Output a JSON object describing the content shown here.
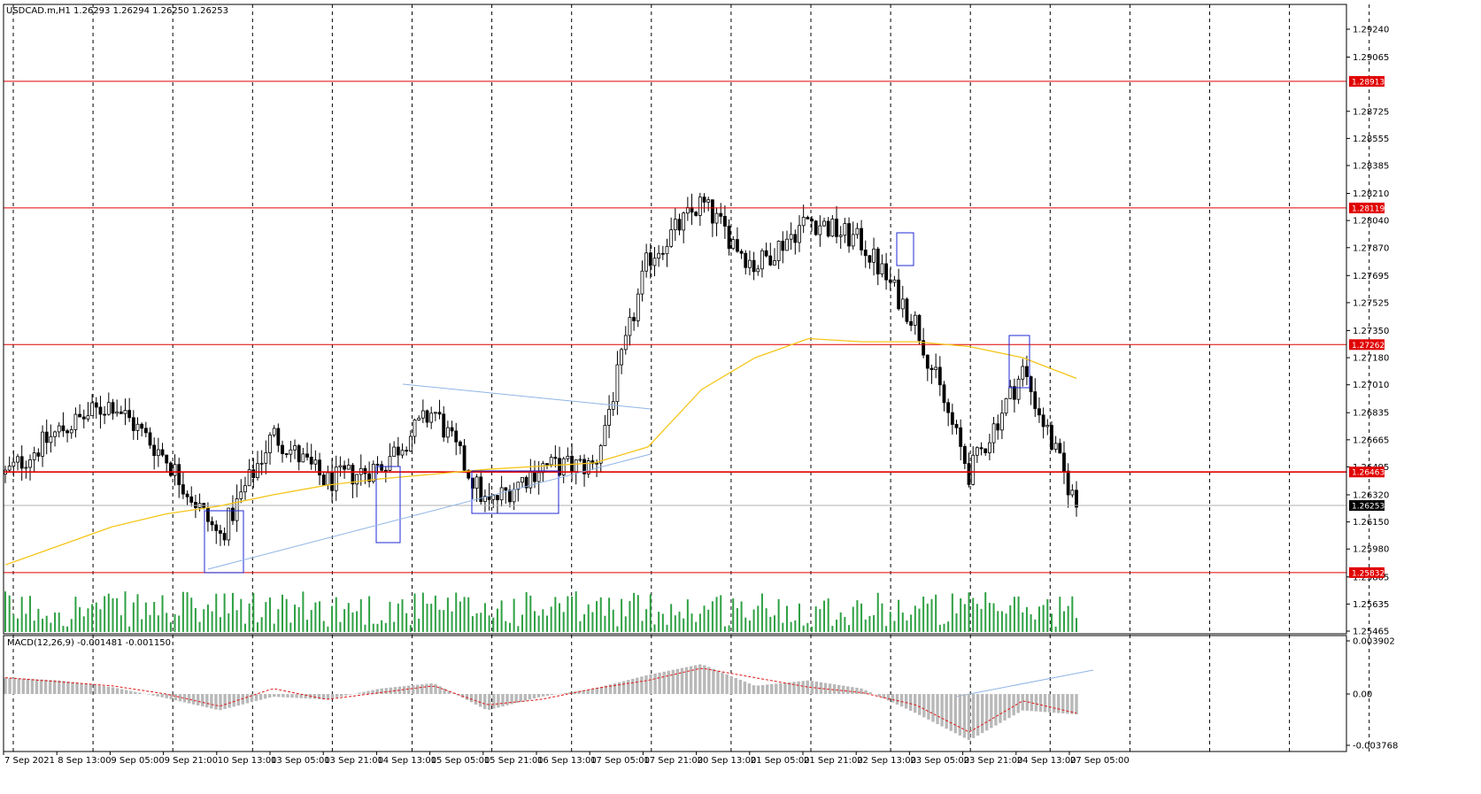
{
  "header": {
    "title": "USDCAD.m,H1  1.26293 1.26294 1.26250 1.26253",
    "macd_title": "MACD(12,26,9) -0.001481 -0.001150"
  },
  "price_axis": {
    "ticks": [
      "1.29240",
      "1.29065",
      "1.28725",
      "1.28555",
      "1.28385",
      "1.28210",
      "1.28040",
      "1.27870",
      "1.27695",
      "1.27525",
      "1.27350",
      "1.27180",
      "1.27010",
      "1.26835",
      "1.26665",
      "1.26495",
      "1.26320",
      "1.26150",
      "1.25980",
      "1.25805",
      "1.25635",
      "1.25465"
    ],
    "ylim": [
      1.25465,
      1.2924
    ]
  },
  "macd_axis": {
    "ticks": [
      "0.003902",
      "0.00",
      "-0.003768"
    ],
    "ylim": [
      -0.003768,
      0.003902
    ]
  },
  "levels": [
    {
      "price": 1.28913,
      "label": "1.28913",
      "color": "#e00000"
    },
    {
      "price": 1.28119,
      "label": "1.28119",
      "color": "#e00000"
    },
    {
      "price": 1.27262,
      "label": "1.27262",
      "color": "#e00000"
    },
    {
      "price": 1.26463,
      "label": "1.26463",
      "color": "#e00000"
    },
    {
      "price": 1.25832,
      "label": "1.25832",
      "color": "#e00000"
    }
  ],
  "current_price": {
    "price": 1.26253,
    "label": "1.26253"
  },
  "time_axis": [
    "7 Sep 2021",
    "8 Sep 13:00",
    "9 Sep 05:00",
    "9 Sep 21:00",
    "10 Sep 13:00",
    "13 Sep 05:00",
    "13 Sep 21:00",
    "14 Sep 13:00",
    "15 Sep 05:00",
    "15 Sep 21:00",
    "16 Sep 13:00",
    "17 Sep 05:00",
    "17 Sep 21:00",
    "20 Sep 13:00",
    "21 Sep 05:00",
    "21 Sep 21:00",
    "22 Sep 13:00",
    "23 Sep 05:00",
    "23 Sep 21:00",
    "24 Sep 13:00",
    "27 Sep 05:00"
  ],
  "chart_data": {
    "type": "line",
    "symbol": "USDCAD.m",
    "timeframe": "H1",
    "x": [
      "7 Sep 2021",
      "8 Sep 13:00",
      "9 Sep 05:00",
      "9 Sep 21:00",
      "10 Sep 13:00",
      "13 Sep 05:00",
      "13 Sep 21:00",
      "14 Sep 13:00",
      "15 Sep 05:00",
      "15 Sep 21:00",
      "16 Sep 13:00",
      "17 Sep 05:00",
      "17 Sep 21:00",
      "20 Sep 13:00",
      "21 Sep 05:00",
      "21 Sep 21:00",
      "22 Sep 13:00",
      "23 Sep 05:00",
      "23 Sep 21:00",
      "24 Sep 13:00",
      "27 Sep 05:00"
    ],
    "series": [
      {
        "values": [
          1.2645,
          1.2672,
          1.269,
          1.2655,
          1.2605,
          1.267,
          1.264,
          1.265,
          1.2685,
          1.2625,
          1.265,
          1.265,
          1.278,
          1.2815,
          1.2775,
          1.2805,
          1.279,
          1.274,
          1.2645,
          1.271,
          1.2625
        ]
      },
      {
        "values": [
          1.2588,
          1.26,
          1.2612,
          1.262,
          1.2625,
          1.2632,
          1.2638,
          1.2642,
          1.2645,
          1.2648,
          1.265,
          1.2652,
          1.2662,
          1.2698,
          1.2718,
          1.273,
          1.2728,
          1.2728,
          1.2725,
          1.2718,
          1.2705
        ]
      }
    ],
    "macd": {
      "histogram": [
        0.0012,
        0.001,
        0.0005,
        -0.0003,
        -0.0012,
        -0.0002,
        -0.0004,
        0.0004,
        0.0008,
        -0.0012,
        -0.0002,
        0.0004,
        0.0014,
        0.0022,
        0.0006,
        0.001,
        0.0004,
        -0.0014,
        -0.0034,
        -0.0012,
        -0.0015
      ],
      "signal": [
        0.0012,
        0.0009,
        0.0006,
        0.0,
        -0.0009,
        0.0004,
        -0.0004,
        0.0001,
        0.0006,
        -0.0008,
        -0.0004,
        0.0004,
        0.001,
        0.0019,
        0.0012,
        0.0005,
        0.0001,
        -0.0008,
        -0.0028,
        -0.0005,
        -0.0014
      ]
    }
  }
}
